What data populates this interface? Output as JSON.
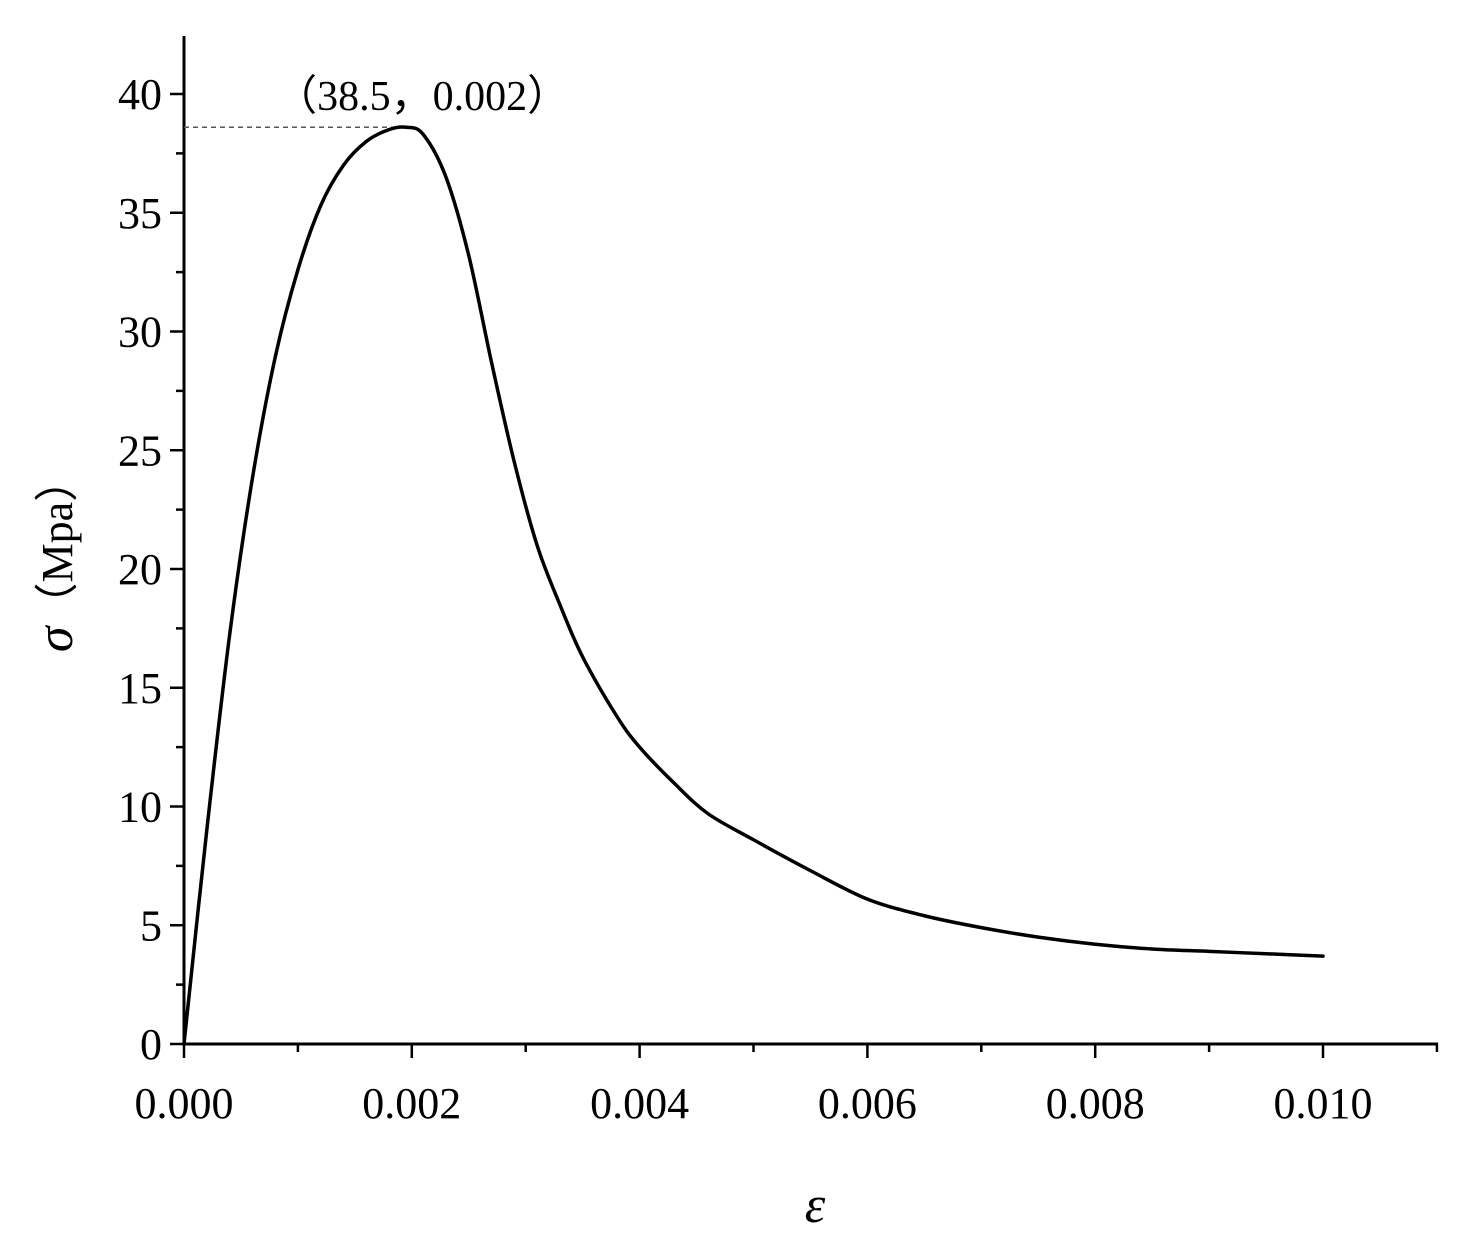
{
  "chart_data": {
    "type": "line",
    "title": "",
    "xlabel": "ε",
    "ylabel": "σ（Mpa）",
    "ylabel_symbol": "σ",
    "ylabel_unit": "（Mpa）",
    "xlim": [
      0.0,
      0.011
    ],
    "ylim": [
      0,
      42
    ],
    "x_ticks": [
      0.0,
      0.002,
      0.004,
      0.006,
      0.008,
      0.01
    ],
    "x_tick_labels": [
      "0.000",
      "0.002",
      "0.004",
      "0.006",
      "0.008",
      "0.010"
    ],
    "y_ticks": [
      0,
      5,
      10,
      15,
      20,
      25,
      30,
      35,
      40
    ],
    "y_tick_labels": [
      "0",
      "5",
      "10",
      "15",
      "20",
      "25",
      "30",
      "35",
      "40"
    ],
    "grid": false,
    "legend": "none",
    "line_color": "#000000",
    "series": [
      {
        "x": [
          0.0,
          0.0002,
          0.0004,
          0.0006,
          0.0008,
          0.001,
          0.0012,
          0.0014,
          0.0016,
          0.0018,
          0.00195,
          0.0021,
          0.0023,
          0.0025,
          0.0027,
          0.0029,
          0.0031,
          0.0033,
          0.0035,
          0.0038,
          0.004,
          0.0043,
          0.0046,
          0.005,
          0.0055,
          0.006,
          0.0065,
          0.007,
          0.0075,
          0.008,
          0.0085,
          0.009,
          0.0095,
          0.01
        ],
        "y": [
          0.0,
          9.0,
          17.2,
          23.8,
          28.9,
          32.6,
          35.3,
          37.0,
          38.0,
          38.5,
          38.6,
          38.3,
          36.5,
          33.2,
          28.7,
          24.5,
          21.0,
          18.5,
          16.3,
          13.8,
          12.5,
          11.0,
          9.7,
          8.6,
          7.3,
          6.1,
          5.4,
          4.9,
          4.5,
          4.2,
          4.0,
          3.9,
          3.8,
          3.7
        ]
      }
    ],
    "annotations": [
      {
        "text": "（38.5，0.002）",
        "x": 0.00195,
        "y": 38.6
      }
    ]
  }
}
